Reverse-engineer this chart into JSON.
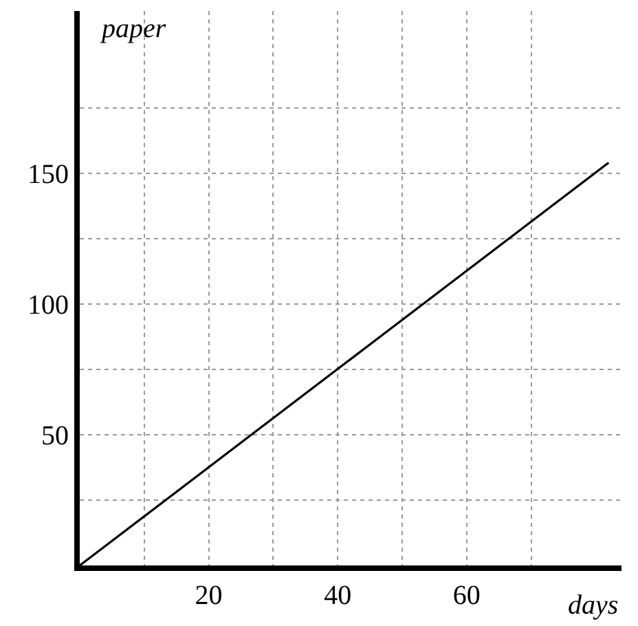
{
  "chart_data": {
    "type": "line",
    "xlabel": "days",
    "ylabel": "paper",
    "x": [
      0,
      82
    ],
    "series": [
      {
        "color": "#000000",
        "values": [
          0,
          154
        ]
      }
    ],
    "xlim": [
      0,
      84
    ],
    "ylim": [
      0,
      212
    ],
    "xticks": [
      {
        "value": 10,
        "label": null
      },
      20,
      {
        "value": 30,
        "label": null
      },
      40,
      {
        "value": 50,
        "label": null
      },
      60,
      {
        "value": 70,
        "label": null
      }
    ],
    "yticks": [
      {
        "value": 25,
        "label": null
      },
      50,
      {
        "value": 75,
        "label": null
      },
      100,
      {
        "value": 125,
        "label": null
      },
      150,
      {
        "value": 175,
        "label": null
      }
    ],
    "grid": true,
    "legend": false,
    "marker": "none",
    "line_style": "solid"
  }
}
